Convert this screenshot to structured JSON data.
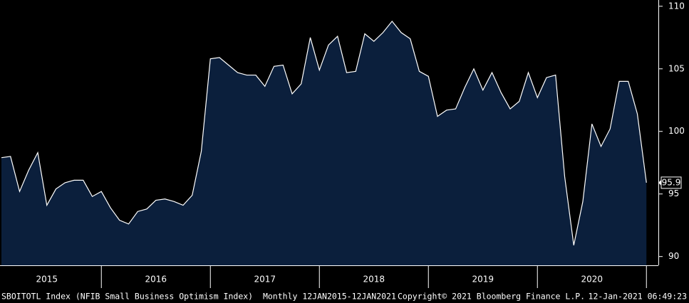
{
  "chart_data": {
    "type": "area",
    "years": [
      "2015",
      "2016",
      "2017",
      "2018",
      "2019",
      "2020"
    ],
    "series": [
      {
        "name": "SBOITOTL Index",
        "color": "#0b1f3c",
        "line_color": "#ffffff",
        "values": [
          97.9,
          98.0,
          95.2,
          96.9,
          98.3,
          94.1,
          95.4,
          95.9,
          96.1,
          96.1,
          94.8,
          95.2,
          93.9,
          92.9,
          92.6,
          93.6,
          93.8,
          94.5,
          94.6,
          94.4,
          94.1,
          94.9,
          98.4,
          105.8,
          105.9,
          105.3,
          104.7,
          104.5,
          104.5,
          103.6,
          105.2,
          105.3,
          103.0,
          103.8,
          107.5,
          104.9,
          106.9,
          107.6,
          104.7,
          104.8,
          107.8,
          107.2,
          107.9,
          108.8,
          107.9,
          107.4,
          104.8,
          104.4,
          101.2,
          101.7,
          101.8,
          103.5,
          105.0,
          103.3,
          104.7,
          103.1,
          101.8,
          102.4,
          104.7,
          102.7,
          104.3,
          104.5,
          96.4,
          90.9,
          94.4,
          100.6,
          98.8,
          100.2,
          104.0,
          104.0,
          101.4,
          95.9
        ]
      }
    ],
    "ylim": [
      89.3,
      110.5
    ],
    "yticks": [
      90,
      95,
      100,
      105,
      110
    ]
  },
  "footer": {
    "description": "SBOITOTL Index (NFIB Small Business Optimism Index)  Monthly 12JAN2015-12JAN2021",
    "copyright": "Copyright© 2021 Bloomberg Finance L.P.",
    "timestamp": "12-Jan-2021 06:49:23"
  }
}
